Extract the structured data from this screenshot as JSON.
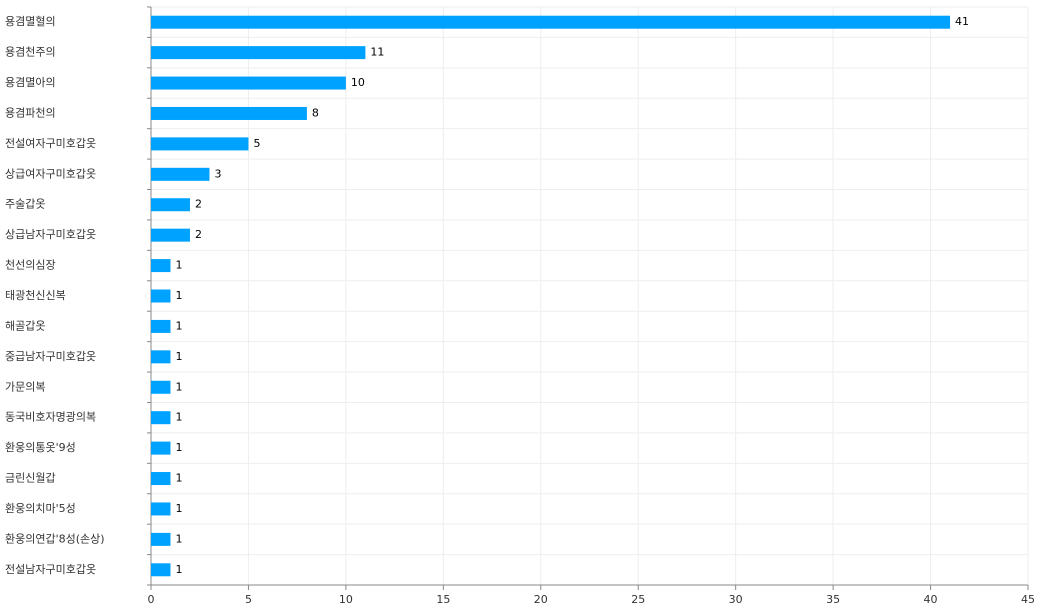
{
  "chart_data": {
    "type": "bar",
    "orientation": "horizontal",
    "categories": [
      "용겸멸혈의",
      "용겸천주의",
      "용겸멸아의",
      "용겸파천의",
      "전설여자구미호갑옷",
      "상급여자구미호갑옷",
      "주술갑옷",
      "상급남자구미호갑옷",
      "천선의심장",
      "태광천신신복",
      "해골갑옷",
      "중급남자구미호갑옷",
      "가문의복",
      "동국비호자명광의복",
      "환웅의통옷'9성",
      "금린신월갑",
      "환웅의치마'5성",
      "환웅의연갑'8성(손상)",
      "전설남자구미호갑옷"
    ],
    "values": [
      41,
      11,
      10,
      8,
      5,
      3,
      2,
      2,
      1,
      1,
      1,
      1,
      1,
      1,
      1,
      1,
      1,
      1,
      1
    ],
    "color": "#00a2ff",
    "xlim": [
      0,
      45
    ],
    "xticks": [
      0,
      5,
      10,
      15,
      20,
      25,
      30,
      35,
      40,
      45
    ],
    "grid": true
  }
}
